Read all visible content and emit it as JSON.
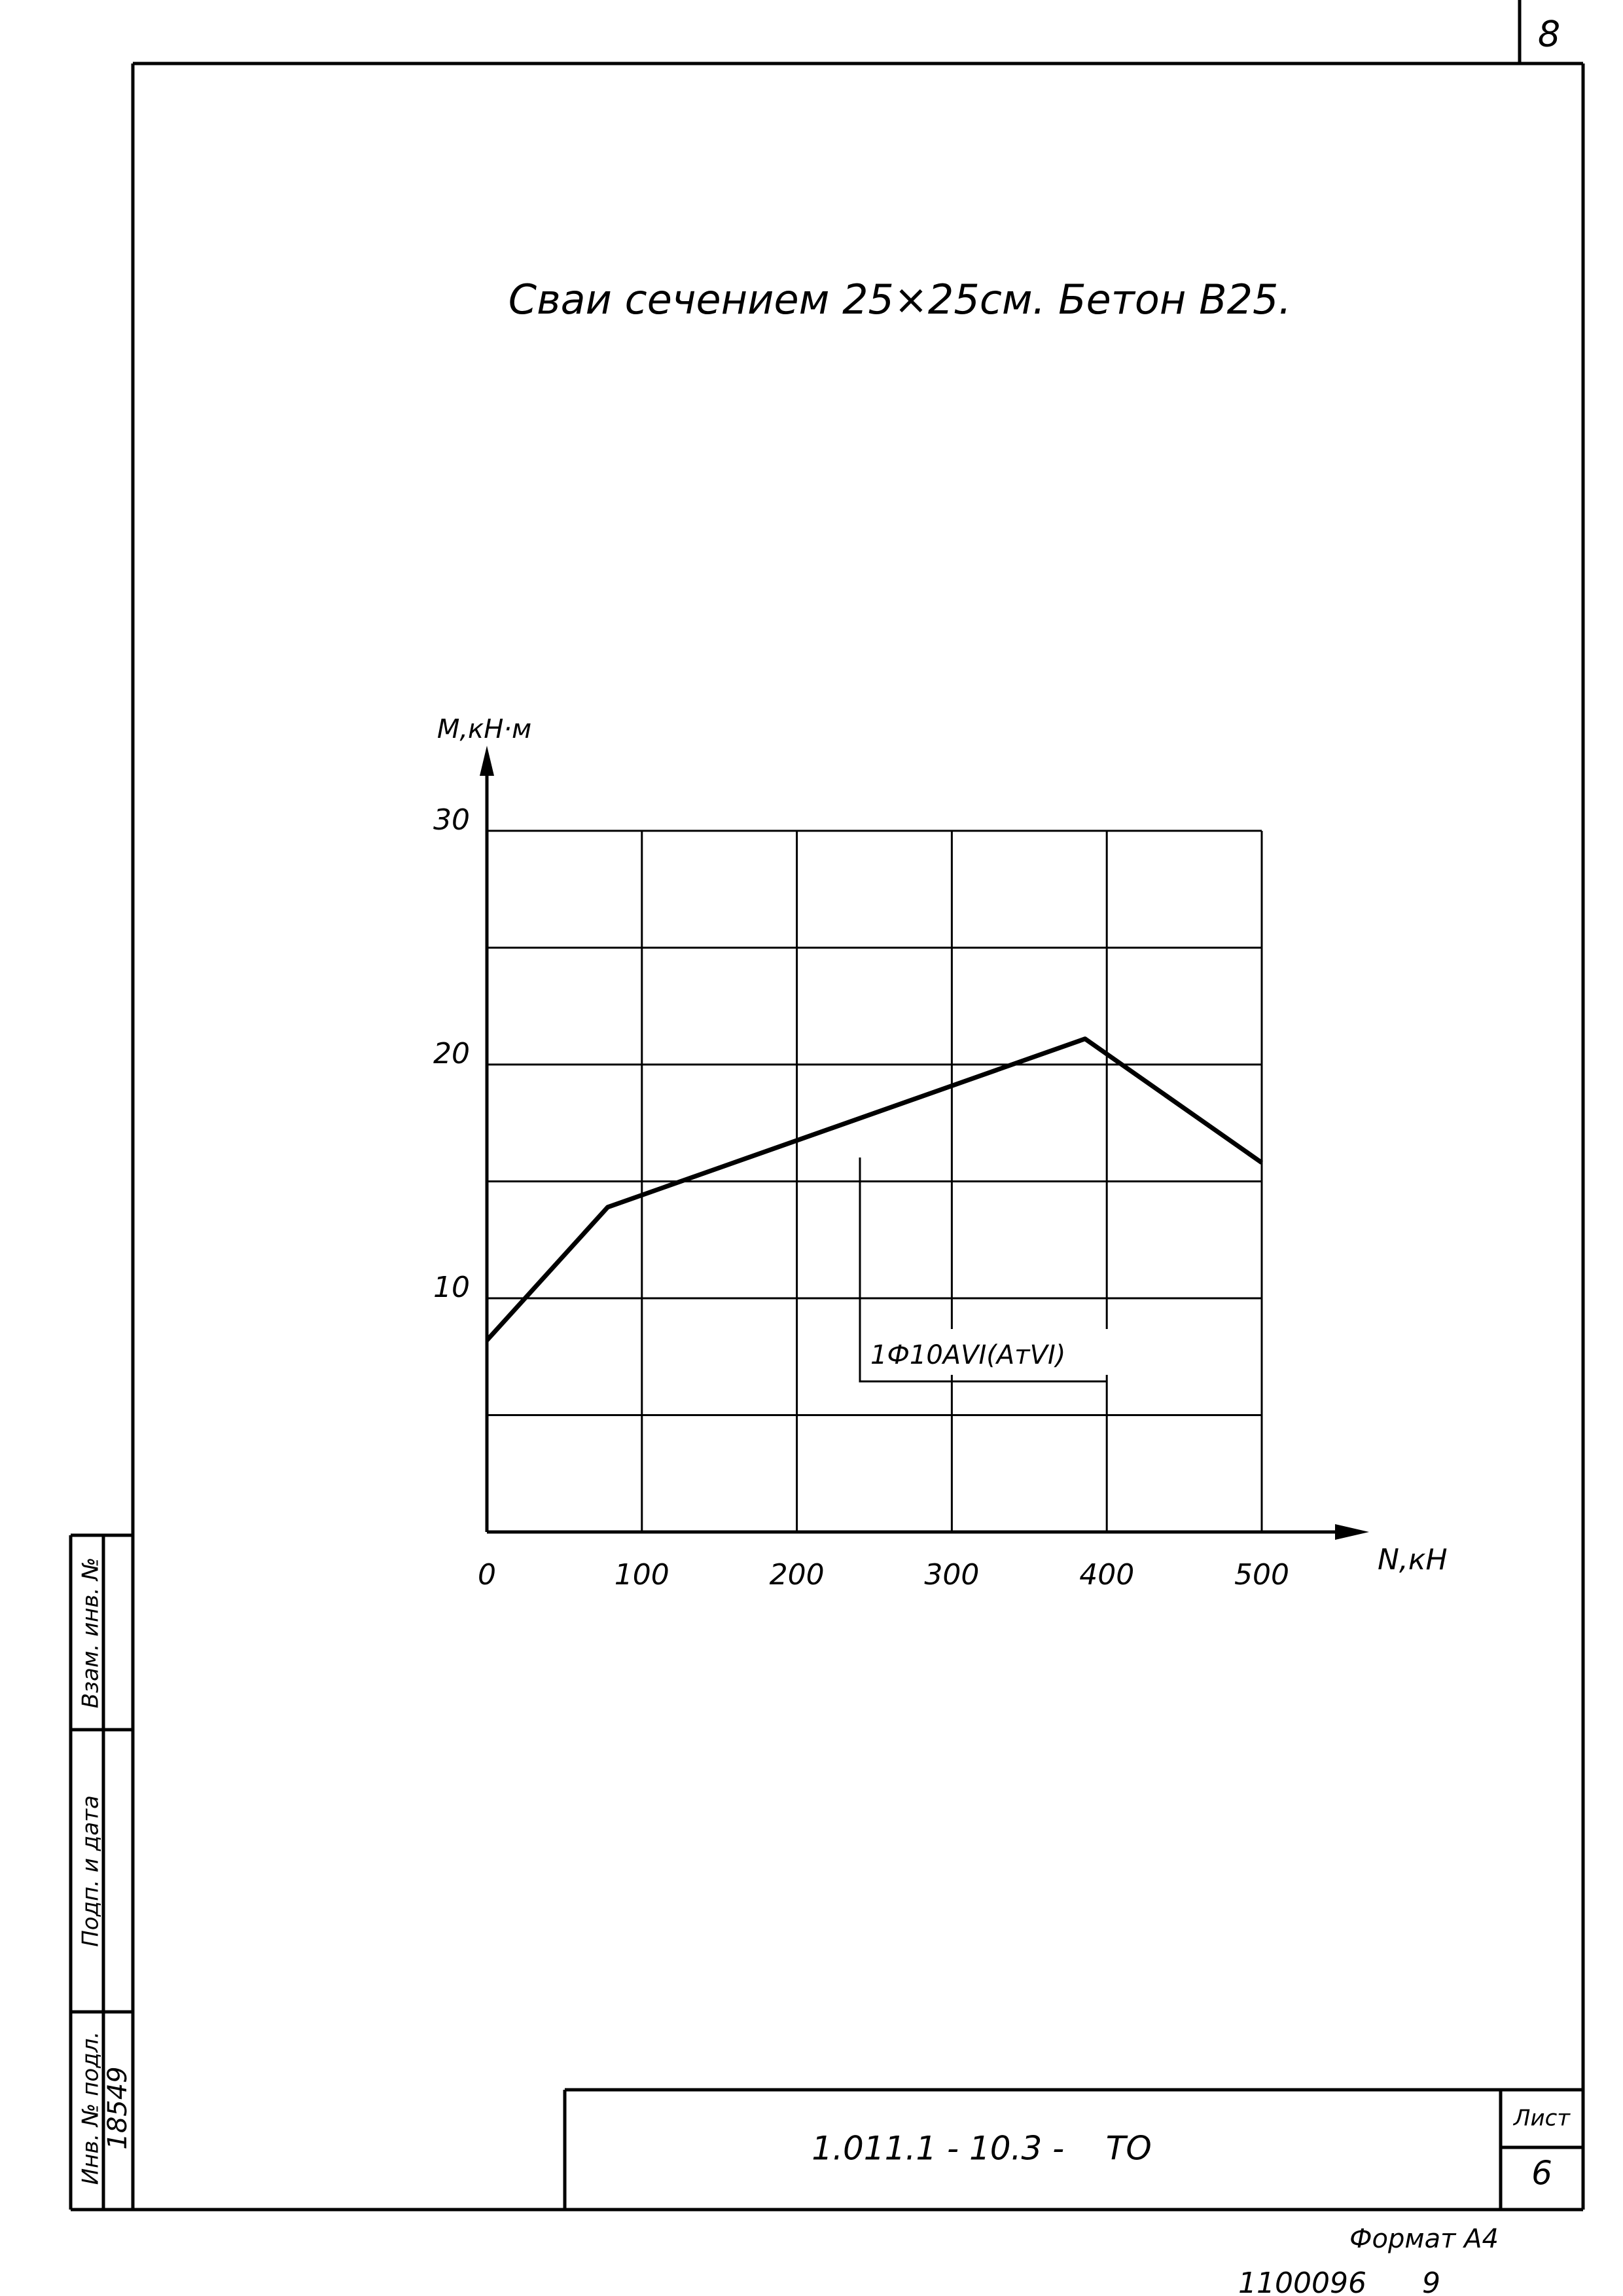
{
  "chart_data": {
    "type": "line",
    "title": "Сваи сечением 25×25см. Бетон В25.",
    "x_label": "N,кН",
    "y_label": "M,кН·м",
    "x": [
      0,
      78,
      386,
      500
    ],
    "values": [
      8.2,
      13.9,
      21.1,
      15.8
    ],
    "color": "#000000",
    "xlim": [
      0,
      500
    ],
    "xticks": [
      0,
      100,
      200,
      300,
      400,
      500
    ],
    "ylim": [
      0,
      30
    ],
    "yticks": [
      10,
      20,
      30
    ],
    "minor_yticks": [
      5,
      15,
      25
    ],
    "grid": true,
    "annotation": "1Ф10АVI(АтVI)"
  },
  "sheet": {
    "page_number": "8",
    "code": "1.011.1 - 10.3 -    ТО",
    "sheet_label": "Лист",
    "sheet_number": "6",
    "format": "Формат А4",
    "archive": "1100096",
    "archive_sheet": "9",
    "stamp": {
      "inv_original": "Инв. № подл.",
      "signature_date": "Подп. и дата",
      "replaced_inv": "Взам. инв. №",
      "inv_number": "18549"
    }
  }
}
